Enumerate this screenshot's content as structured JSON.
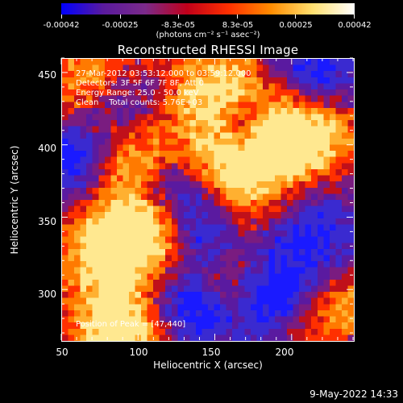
{
  "colorbar": {
    "tick_labels": [
      "-0.00042",
      "-0.00025",
      "-8.3e-05",
      "8.3e-05",
      "0.00025",
      "0.00042"
    ],
    "units": "(photons cm⁻² s⁻¹ asec⁻²)",
    "colormap": [
      "#0000ff",
      "#5a1a9e",
      "#7b2a8a",
      "#c0001a",
      "#ff3000",
      "#ff8c00",
      "#ffe070",
      "#ffffff"
    ]
  },
  "title": "Reconstructed RHESSI Image",
  "info": {
    "time": "27-Mar-2012 03:53:12.000 to 03:59:12.000",
    "detectors": "Detectors: 3F 5F 6F 7F 8F, Att 0",
    "energy": "Energy Range: 25.0 - 50.0 keV",
    "clean": "Clean    Total counts: 5.76E+03"
  },
  "peak_label": "Position of Peak = [47,440]",
  "axes": {
    "xlabel": "Heliocentric X (arcsec)",
    "ylabel": "Heliocentric Y (arcsec)",
    "xticks": [
      "50",
      "100",
      "150",
      "200"
    ],
    "yticks": [
      "300",
      "350",
      "400",
      "450"
    ],
    "xlim": [
      50,
      240
    ],
    "ylim": [
      265,
      460
    ]
  },
  "timestamp": "9-May-2022 14:33"
}
